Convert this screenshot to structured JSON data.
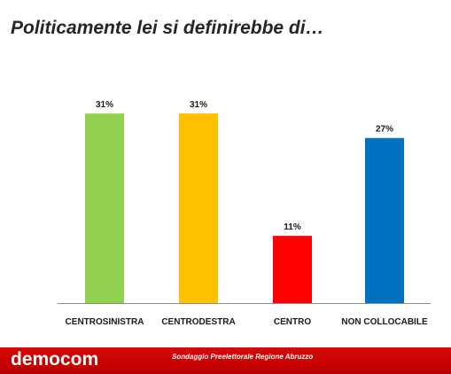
{
  "title": "Politicamente lei si definirebbe di…",
  "footer": {
    "logo": "democom",
    "caption": "Sondaggio Preelettorale Regione Abruzzo"
  },
  "colors": {
    "footer": "#c90000",
    "bars": [
      "#92d050",
      "#ffc000",
      "#ff0000",
      "#0070c0"
    ]
  },
  "chart_data": {
    "type": "bar",
    "title": "Politicamente lei si definirebbe di…",
    "xlabel": "",
    "ylabel": "",
    "categories": [
      "CENTROSINISTRA",
      "CENTRODESTRA",
      "CENTRO",
      "NON COLLOCABILE"
    ],
    "values": [
      31,
      31,
      11,
      27
    ],
    "value_labels": [
      "31%",
      "31%",
      "11%",
      "27%"
    ],
    "unit": "%",
    "ylim": [
      0,
      35
    ],
    "grid": false,
    "legend": "none"
  }
}
